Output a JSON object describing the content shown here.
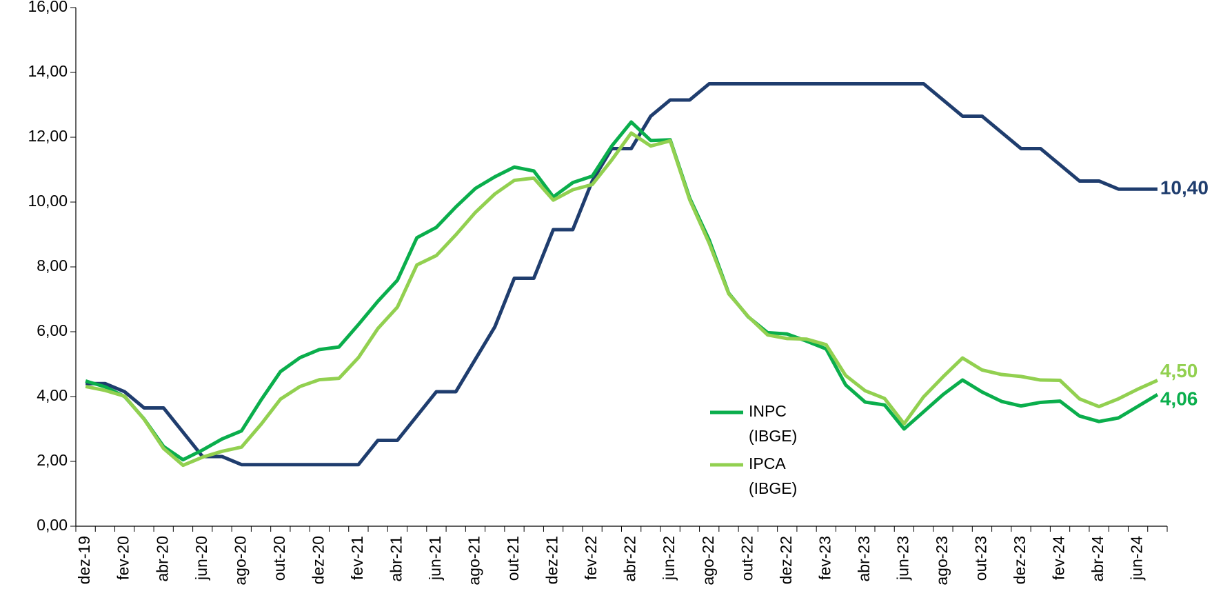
{
  "chart_data": {
    "type": "line",
    "categories": [
      "dez-19",
      null,
      "fev-20",
      null,
      "abr-20",
      null,
      "jun-20",
      null,
      "ago-20",
      null,
      "out-20",
      null,
      "dez-20",
      null,
      "fev-21",
      null,
      "abr-21",
      null,
      "jun-21",
      null,
      "ago-21",
      null,
      "out-21",
      null,
      "dez-21",
      null,
      "fev-22",
      null,
      "abr-22",
      null,
      "jun-22",
      null,
      "ago-22",
      null,
      "out-22",
      null,
      "dez-22",
      null,
      "fev-23",
      null,
      "abr-23",
      null,
      "jun-23",
      null,
      "ago-23",
      null,
      "out-23",
      null,
      "dez-23",
      null,
      "fev-24",
      null,
      "abr-24",
      null,
      "jun-24",
      null
    ],
    "series": [
      {
        "color": "#1f3d6e",
        "values": [
          4.4,
          4.4,
          4.15,
          3.65,
          3.65,
          2.9,
          2.15,
          2.15,
          1.9,
          1.9,
          1.9,
          1.9,
          1.9,
          1.9,
          1.9,
          2.65,
          2.65,
          3.4,
          4.15,
          4.15,
          5.15,
          6.15,
          7.65,
          7.65,
          9.15,
          9.15,
          10.65,
          11.65,
          11.65,
          12.65,
          13.15,
          13.15,
          13.65,
          13.65,
          13.65,
          13.65,
          13.65,
          13.65,
          13.65,
          13.65,
          13.65,
          13.65,
          13.65,
          13.65,
          13.15,
          12.65,
          12.65,
          12.15,
          11.65,
          11.65,
          11.15,
          10.65,
          10.65,
          10.4,
          10.4,
          10.4
        ],
        "value_labels": [
          null,
          null,
          null,
          null,
          null,
          null,
          null,
          null,
          null,
          null,
          null,
          null,
          null,
          null,
          null,
          null,
          null,
          null,
          null,
          null,
          null,
          null,
          null,
          null,
          null,
          null,
          null,
          null,
          null,
          null,
          null,
          null,
          null,
          null,
          null,
          null,
          null,
          null,
          null,
          null,
          null,
          null,
          null,
          null,
          null,
          null,
          null,
          null,
          null,
          null,
          null,
          null,
          null,
          null,
          null,
          "10,40"
        ]
      },
      {
        "name": "INPC (IBGE)",
        "color": "#0aae4c",
        "values": [
          4.48,
          4.3,
          4.0,
          3.31,
          2.46,
          2.05,
          2.35,
          2.69,
          2.94,
          3.89,
          4.77,
          5.2,
          5.45,
          5.53,
          6.22,
          6.94,
          7.59,
          8.9,
          9.22,
          9.85,
          10.42,
          10.78,
          11.08,
          10.96,
          10.16,
          10.6,
          10.8,
          11.73,
          12.47,
          11.9,
          11.92,
          10.12,
          8.83,
          7.19,
          6.46,
          5.97,
          5.93,
          5.71,
          5.47,
          4.36,
          3.83,
          3.74,
          3.0,
          3.53,
          4.06,
          4.51,
          4.14,
          3.85,
          3.71,
          3.82,
          3.86,
          3.4,
          3.23,
          3.34,
          3.7,
          4.06
        ],
        "value_labels": [
          null,
          null,
          null,
          null,
          null,
          null,
          null,
          null,
          null,
          null,
          null,
          null,
          null,
          null,
          null,
          null,
          null,
          null,
          null,
          null,
          null,
          null,
          null,
          null,
          null,
          null,
          null,
          null,
          null,
          null,
          null,
          null,
          null,
          null,
          null,
          null,
          null,
          null,
          null,
          null,
          null,
          null,
          null,
          null,
          null,
          null,
          null,
          null,
          null,
          null,
          null,
          null,
          null,
          null,
          null,
          "4,06"
        ]
      },
      {
        "name": "IPCA (IBGE)",
        "color": "#92d050",
        "values": [
          4.31,
          4.19,
          4.01,
          3.3,
          2.4,
          1.88,
          2.13,
          2.31,
          2.44,
          3.14,
          3.92,
          4.31,
          4.52,
          4.56,
          5.2,
          6.1,
          6.76,
          8.06,
          8.35,
          8.99,
          9.68,
          10.25,
          10.67,
          10.74,
          10.06,
          10.38,
          10.54,
          11.3,
          12.13,
          11.73,
          11.89,
          10.07,
          8.73,
          7.17,
          6.47,
          5.9,
          5.79,
          5.77,
          5.6,
          4.65,
          4.18,
          3.94,
          3.16,
          3.99,
          4.61,
          5.19,
          4.82,
          4.68,
          4.62,
          4.51,
          4.5,
          3.93,
          3.69,
          3.93,
          4.23,
          4.5
        ],
        "value_labels": [
          null,
          null,
          null,
          null,
          null,
          null,
          null,
          null,
          null,
          null,
          null,
          null,
          null,
          null,
          null,
          null,
          null,
          null,
          null,
          null,
          null,
          null,
          null,
          null,
          null,
          null,
          null,
          null,
          null,
          null,
          null,
          null,
          null,
          null,
          null,
          null,
          null,
          null,
          null,
          null,
          null,
          null,
          null,
          null,
          null,
          null,
          null,
          null,
          null,
          null,
          null,
          null,
          null,
          null,
          null,
          "4,50"
        ]
      }
    ],
    "ylim": [
      0,
      16
    ],
    "yticks": [
      {
        "value": 0,
        "label": "0,00"
      },
      {
        "value": 2,
        "label": "2,00"
      },
      {
        "value": 4,
        "label": "4,00"
      },
      {
        "value": 6,
        "label": "6,00"
      },
      {
        "value": 8,
        "label": "8,00"
      },
      {
        "value": 10,
        "label": "10,00"
      },
      {
        "value": 12,
        "label": "12,00"
      },
      {
        "value": 14,
        "label": "14,00"
      },
      {
        "value": 16,
        "label": "16,00"
      }
    ],
    "grid": false
  }
}
